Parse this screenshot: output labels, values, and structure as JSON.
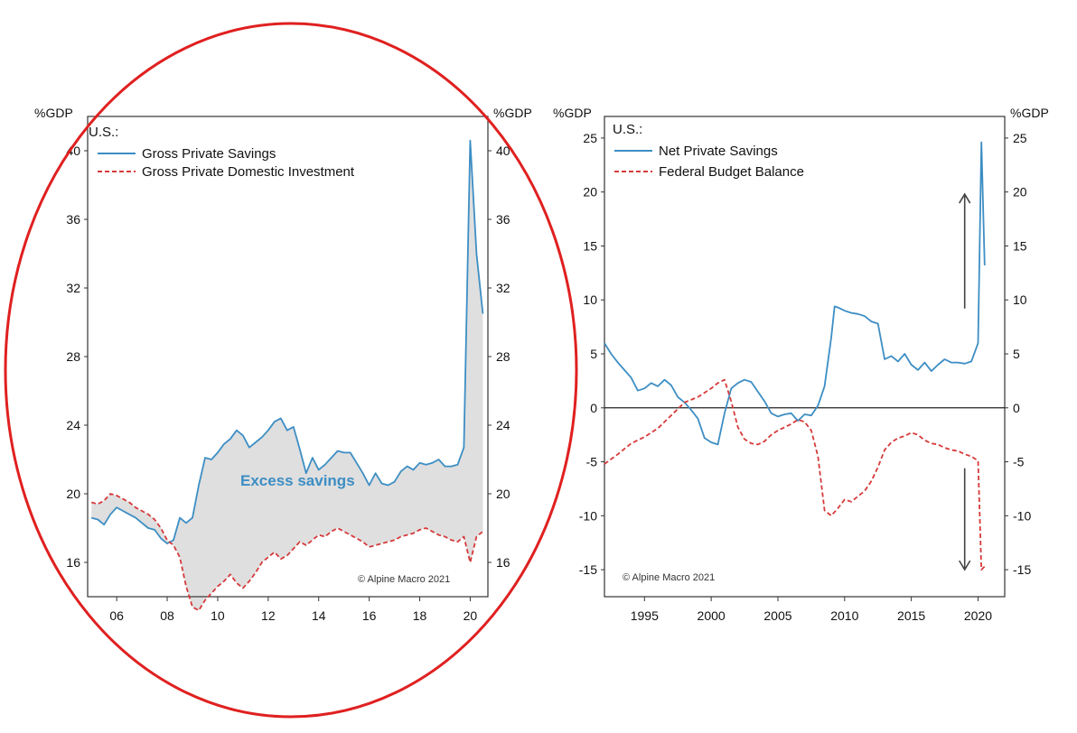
{
  "chart_data": [
    {
      "type": "area",
      "region_label": "U.S.:",
      "y_unit_left": "%GDP",
      "y_unit_right": "%GDP",
      "ylim": [
        14,
        42
      ],
      "yticks": [
        16,
        20,
        24,
        28,
        32,
        36,
        40
      ],
      "xlim": [
        2004.85,
        2020.7
      ],
      "xticks": [
        2006,
        2008,
        2010,
        2012,
        2014,
        2016,
        2018,
        2020
      ],
      "xtick_labels": [
        "06",
        "08",
        "10",
        "12",
        "14",
        "16",
        "18",
        "20"
      ],
      "annotation": "Excess savings",
      "source": "© Alpine Macro 2021",
      "fill_between": [
        "Gross Private Savings",
        "Gross Private Domestic Investment"
      ],
      "series": [
        {
          "name": "Gross Private Savings",
          "color": "#3d8ec4",
          "style": "solid",
          "x": [
            2005.0,
            2005.25,
            2005.5,
            2005.75,
            2006.0,
            2006.25,
            2006.5,
            2006.75,
            2007.0,
            2007.25,
            2007.5,
            2007.75,
            2008.0,
            2008.25,
            2008.5,
            2008.75,
            2009.0,
            2009.25,
            2009.5,
            2009.75,
            2010.0,
            2010.25,
            2010.5,
            2010.75,
            2011.0,
            2011.25,
            2011.5,
            2011.75,
            2012.0,
            2012.25,
            2012.5,
            2012.75,
            2013.0,
            2013.25,
            2013.5,
            2013.75,
            2014.0,
            2014.25,
            2014.5,
            2014.75,
            2015.0,
            2015.25,
            2015.5,
            2015.75,
            2016.0,
            2016.25,
            2016.5,
            2016.75,
            2017.0,
            2017.25,
            2017.5,
            2017.75,
            2018.0,
            2018.25,
            2018.5,
            2018.75,
            2019.0,
            2019.25,
            2019.5,
            2019.75,
            2020.0,
            2020.25,
            2020.5
          ],
          "values": [
            18.6,
            18.5,
            18.2,
            18.8,
            19.2,
            19.0,
            18.8,
            18.6,
            18.3,
            18.0,
            17.9,
            17.4,
            17.1,
            17.3,
            18.6,
            18.3,
            18.6,
            20.5,
            22.1,
            22.0,
            22.4,
            22.9,
            23.2,
            23.7,
            23.4,
            22.7,
            23.0,
            23.3,
            23.7,
            24.2,
            24.4,
            23.7,
            23.9,
            22.6,
            21.2,
            22.1,
            21.4,
            21.7,
            22.1,
            22.5,
            22.4,
            22.4,
            21.8,
            21.2,
            20.5,
            21.2,
            20.6,
            20.5,
            20.7,
            21.3,
            21.6,
            21.4,
            21.8,
            21.7,
            21.8,
            22.0,
            21.6,
            21.6,
            21.7,
            22.7,
            40.6,
            34.0,
            30.5
          ]
        },
        {
          "name": "Gross Private Domestic Investment",
          "color": "#d63a3a",
          "style": "dashed",
          "x": [
            2005.0,
            2005.25,
            2005.5,
            2005.75,
            2006.0,
            2006.25,
            2006.5,
            2006.75,
            2007.0,
            2007.25,
            2007.5,
            2007.75,
            2008.0,
            2008.25,
            2008.5,
            2008.75,
            2009.0,
            2009.25,
            2009.5,
            2009.75,
            2010.0,
            2010.25,
            2010.5,
            2010.75,
            2011.0,
            2011.25,
            2011.5,
            2011.75,
            2012.0,
            2012.25,
            2012.5,
            2012.75,
            2013.0,
            2013.25,
            2013.5,
            2013.75,
            2014.0,
            2014.25,
            2014.5,
            2014.75,
            2015.0,
            2015.25,
            2015.5,
            2015.75,
            2016.0,
            2016.25,
            2016.5,
            2016.75,
            2017.0,
            2017.25,
            2017.5,
            2017.75,
            2018.0,
            2018.25,
            2018.5,
            2018.75,
            2019.0,
            2019.25,
            2019.5,
            2019.75,
            2020.0,
            2020.25,
            2020.5
          ],
          "values": [
            19.5,
            19.4,
            19.6,
            20.0,
            19.9,
            19.7,
            19.5,
            19.2,
            19.0,
            18.8,
            18.5,
            18.0,
            17.3,
            17.0,
            16.3,
            14.6,
            13.4,
            13.2,
            13.8,
            14.2,
            14.6,
            14.9,
            15.3,
            14.8,
            14.5,
            14.9,
            15.4,
            16.0,
            16.3,
            16.6,
            16.2,
            16.4,
            16.8,
            17.2,
            17.0,
            17.3,
            17.6,
            17.5,
            17.8,
            18.0,
            17.8,
            17.6,
            17.4,
            17.2,
            16.9,
            17.0,
            17.1,
            17.2,
            17.3,
            17.5,
            17.6,
            17.7,
            17.9,
            18.0,
            17.8,
            17.6,
            17.5,
            17.3,
            17.2,
            17.5,
            16.0,
            17.5,
            17.8
          ]
        }
      ]
    },
    {
      "type": "line",
      "region_label": "U.S.:",
      "y_unit_left": "%GDP",
      "y_unit_right": "%GDP",
      "ylim": [
        -17.5,
        27
      ],
      "yticks": [
        -15,
        -10,
        -5,
        0,
        5,
        10,
        15,
        20,
        25
      ],
      "xlim": [
        1992,
        2022
      ],
      "xticks": [
        1995,
        2000,
        2005,
        2010,
        2015,
        2020
      ],
      "xtick_labels": [
        "1995",
        "2000",
        "2005",
        "2010",
        "2015",
        "2020"
      ],
      "source": "© Alpine Macro 2021",
      "zero_line": true,
      "arrows": [
        {
          "direction": "up",
          "x": 2019.0,
          "y_from": 9.2,
          "y_to": 19.8
        },
        {
          "direction": "down",
          "x": 2019.0,
          "y_from": -5.6,
          "y_to": -15.0
        }
      ],
      "series": [
        {
          "name": "Net Private Savings",
          "color": "#3d8ec4",
          "style": "solid",
          "x": [
            1992.0,
            1992.5,
            1993.0,
            1993.5,
            1994.0,
            1994.5,
            1995.0,
            1995.5,
            1996.0,
            1996.5,
            1997.0,
            1997.5,
            1998.0,
            1998.5,
            1999.0,
            1999.5,
            2000.0,
            2000.5,
            2001.0,
            2001.5,
            2002.0,
            2002.5,
            2003.0,
            2003.5,
            2004.0,
            2004.5,
            2005.0,
            2005.5,
            2006.0,
            2006.5,
            2007.0,
            2007.5,
            2008.0,
            2008.5,
            2009.0,
            2009.25,
            2009.5,
            2010.0,
            2010.5,
            2011.0,
            2011.5,
            2012.0,
            2012.5,
            2013.0,
            2013.5,
            2014.0,
            2014.5,
            2015.0,
            2015.5,
            2016.0,
            2016.5,
            2017.0,
            2017.5,
            2018.0,
            2018.5,
            2019.0,
            2019.5,
            2020.0,
            2020.25,
            2020.5
          ],
          "values": [
            6.0,
            5.0,
            4.2,
            3.5,
            2.8,
            1.6,
            1.8,
            2.3,
            2.0,
            2.6,
            2.1,
            1.0,
            0.5,
            -0.2,
            -1.0,
            -2.8,
            -3.2,
            -3.4,
            -0.5,
            1.8,
            2.3,
            2.6,
            2.4,
            1.5,
            0.6,
            -0.5,
            -0.8,
            -0.6,
            -0.5,
            -1.2,
            -0.6,
            -0.7,
            0.2,
            2.0,
            6.5,
            9.4,
            9.3,
            9.0,
            8.8,
            8.7,
            8.5,
            8.0,
            7.8,
            4.5,
            4.8,
            4.3,
            5.0,
            4.0,
            3.5,
            4.2,
            3.4,
            4.0,
            4.5,
            4.2,
            4.2,
            4.1,
            4.3,
            6.0,
            24.6,
            13.2
          ]
        },
        {
          "name": "Federal Budget Balance",
          "color": "#d63a3a",
          "style": "dashed",
          "x": [
            1992.0,
            1993.0,
            1994.0,
            1995.0,
            1996.0,
            1997.0,
            1998.0,
            1999.0,
            2000.0,
            2000.5,
            2001.0,
            2001.5,
            2002.0,
            2002.5,
            2003.0,
            2003.5,
            2004.0,
            2004.5,
            2005.0,
            2005.5,
            2006.0,
            2006.5,
            2007.0,
            2007.5,
            2008.0,
            2008.5,
            2009.0,
            2009.5,
            2010.0,
            2010.5,
            2011.0,
            2011.5,
            2012.0,
            2012.5,
            2013.0,
            2013.5,
            2014.0,
            2014.5,
            2015.0,
            2015.5,
            2016.0,
            2016.5,
            2017.0,
            2017.5,
            2018.0,
            2018.5,
            2019.0,
            2019.5,
            2020.0,
            2020.25,
            2020.5
          ],
          "values": [
            -5.2,
            -4.3,
            -3.3,
            -2.7,
            -1.9,
            -0.7,
            0.5,
            1.0,
            1.8,
            2.3,
            2.6,
            0.6,
            -1.8,
            -2.9,
            -3.3,
            -3.4,
            -3.1,
            -2.5,
            -2.1,
            -1.8,
            -1.5,
            -1.1,
            -1.3,
            -2.1,
            -4.5,
            -9.5,
            -10.0,
            -9.3,
            -8.5,
            -8.7,
            -8.2,
            -7.7,
            -6.8,
            -5.5,
            -3.9,
            -3.2,
            -2.8,
            -2.6,
            -2.3,
            -2.5,
            -3.0,
            -3.3,
            -3.4,
            -3.7,
            -3.9,
            -4.0,
            -4.3,
            -4.5,
            -4.9,
            -15.0,
            -14.7
          ]
        }
      ]
    }
  ]
}
